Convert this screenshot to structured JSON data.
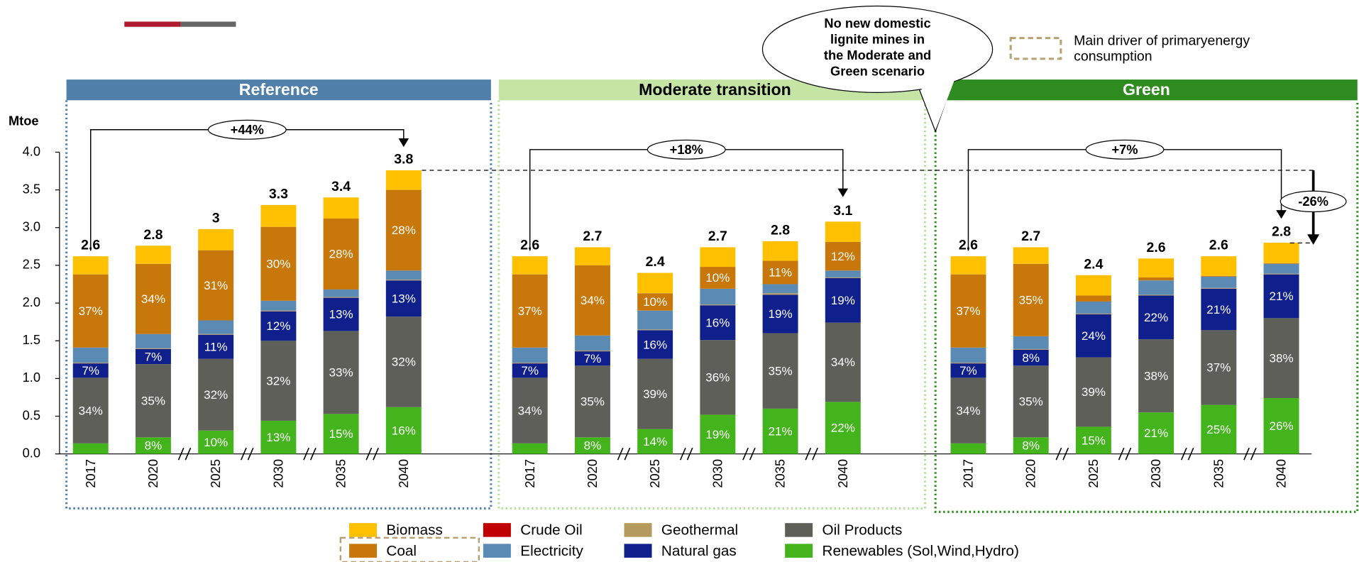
{
  "chart_data": {
    "type": "stacked_bar",
    "y_label": "Mtoe",
    "ylim": [
      0,
      4
    ],
    "yticks": [
      {
        "value": 0,
        "label": "0.0"
      },
      {
        "value": 0.5,
        "label": "0.5"
      },
      {
        "value": 1,
        "label": "1.0"
      },
      {
        "value": 1.5,
        "label": "1.5"
      },
      {
        "value": 2,
        "label": "2.0"
      },
      {
        "value": 2.5,
        "label": "2.5"
      },
      {
        "value": 3,
        "label": "3.0"
      },
      {
        "value": 3.5,
        "label": "3.5"
      },
      {
        "value": 4,
        "label": "4.0"
      }
    ],
    "categories": [
      "2017",
      "2020",
      "2025",
      "2030",
      "2035",
      "2040"
    ],
    "panels": [
      "Reference",
      "Moderate transition",
      "Green"
    ],
    "totals": [
      [
        2.6,
        2.8,
        3.0,
        3.3,
        3.4,
        3.8
      ],
      [
        2.6,
        2.7,
        2.4,
        2.7,
        2.8,
        3.1
      ],
      [
        2.6,
        2.7,
        2.4,
        2.6,
        2.6,
        2.8
      ]
    ],
    "series": [
      {
        "name": "Renewables (Sol,Wind,Hydro)",
        "color": "#44b41c",
        "values": [
          [
            0.14,
            0.22,
            0.31,
            0.44,
            0.53,
            0.62
          ],
          [
            0.14,
            0.22,
            0.33,
            0.52,
            0.6,
            0.69
          ],
          [
            0.14,
            0.22,
            0.36,
            0.55,
            0.65,
            0.74
          ]
        ],
        "shares": [
          [
            null,
            8,
            10,
            13,
            15,
            16
          ],
          [
            null,
            8,
            14,
            19,
            21,
            22
          ],
          [
            null,
            8,
            15,
            21,
            25,
            26
          ]
        ],
        "share_labels": [
          [
            null,
            "8%",
            "10%",
            "13%",
            "15%",
            "16%"
          ],
          [
            null,
            "8%",
            "14%",
            "19%",
            "21%",
            "22%"
          ],
          [
            null,
            "8%",
            "15%",
            "21%",
            "25%",
            "26%"
          ]
        ]
      },
      {
        "name": "Oil Products",
        "color": "#5f5f5a",
        "values": [
          [
            0.87,
            0.97,
            0.95,
            1.06,
            1.1,
            1.2
          ],
          [
            0.87,
            0.95,
            0.93,
            0.99,
            1.0,
            1.05
          ],
          [
            0.87,
            0.95,
            0.92,
            0.97,
            0.99,
            1.06
          ]
        ],
        "shares": [
          [
            34,
            35,
            32,
            32,
            33,
            32
          ],
          [
            34,
            35,
            39,
            36,
            35,
            34
          ],
          [
            34,
            35,
            39,
            38,
            37,
            38
          ]
        ],
        "share_labels": [
          [
            "34%",
            "35%",
            "32%",
            "32%",
            "33%",
            "32%"
          ],
          [
            "34%",
            "35%",
            "39%",
            "36%",
            "35%",
            "34%"
          ],
          [
            "34%",
            "35%",
            "39%",
            "38%",
            "37%",
            "38%"
          ]
        ]
      },
      {
        "name": "Natural gas",
        "color": "#0f1f8c",
        "values": [
          [
            0.19,
            0.2,
            0.32,
            0.39,
            0.44,
            0.48
          ],
          [
            0.19,
            0.19,
            0.38,
            0.46,
            0.51,
            0.59
          ],
          [
            0.19,
            0.21,
            0.57,
            0.58,
            0.55,
            0.58
          ]
        ],
        "shares": [
          [
            7,
            7,
            11,
            12,
            13,
            13
          ],
          [
            7,
            7,
            16,
            16,
            19,
            19
          ],
          [
            7,
            8,
            24,
            22,
            21,
            21
          ]
        ],
        "share_labels": [
          [
            "7%",
            "7%",
            "11%",
            "12%",
            "13%",
            "13%"
          ],
          [
            "7%",
            "7%",
            "16%",
            "16%",
            "19%",
            "19%"
          ],
          [
            "7%",
            "8%",
            "24%",
            "22%",
            "21%",
            "21%"
          ]
        ]
      },
      {
        "name": "Geothermal",
        "color": "#b59a5e",
        "values": [
          [
            0.01,
            0.01,
            0.01,
            0.01,
            0.01,
            0.01
          ],
          [
            0.01,
            0.01,
            0.01,
            0.01,
            0.02,
            0.01
          ],
          [
            0.01,
            0.01,
            0.01,
            0.01,
            0.01,
            0.01
          ]
        ]
      },
      {
        "name": "Electricity",
        "color": "#5b8ab5",
        "values": [
          [
            0.2,
            0.19,
            0.18,
            0.13,
            0.1,
            0.12
          ],
          [
            0.2,
            0.2,
            0.25,
            0.21,
            0.12,
            0.09
          ],
          [
            0.2,
            0.17,
            0.16,
            0.19,
            0.15,
            0.13
          ]
        ]
      },
      {
        "name": "Coal",
        "color": "#c8780a",
        "values": [
          [
            0.97,
            0.93,
            0.93,
            0.98,
            0.94,
            1.07
          ],
          [
            0.97,
            0.93,
            0.23,
            0.29,
            0.31,
            0.38
          ],
          [
            0.97,
            0.96,
            0.08,
            0.04,
            0.01,
            0.01
          ]
        ],
        "shares": [
          [
            37,
            34,
            31,
            30,
            28,
            28
          ],
          [
            37,
            34,
            10,
            10,
            11,
            12
          ],
          [
            37,
            35,
            null,
            null,
            null,
            null
          ]
        ],
        "share_labels": [
          [
            "37%",
            "34%",
            "31%",
            "30%",
            "28%",
            "28%"
          ],
          [
            "37%",
            "34%",
            "10%",
            "10%",
            "11%",
            "12%"
          ],
          [
            "37%",
            "35%",
            null,
            null,
            null,
            null
          ]
        ]
      },
      {
        "name": "Crude Oil",
        "color": "#c00000",
        "values": [
          [
            0,
            0,
            0,
            0,
            0,
            0
          ],
          [
            0,
            0,
            0,
            0,
            0,
            0
          ],
          [
            0,
            0,
            0,
            0,
            0,
            0
          ]
        ]
      },
      {
        "name": "Biomass",
        "color": "#ffc000",
        "values": [
          [
            0.24,
            0.24,
            0.28,
            0.29,
            0.28,
            0.26
          ],
          [
            0.24,
            0.24,
            0.27,
            0.26,
            0.26,
            0.27
          ],
          [
            0.24,
            0.22,
            0.27,
            0.25,
            0.26,
            0.27
          ]
        ]
      }
    ],
    "changes": [
      "+44%",
      "+18%",
      "+7%"
    ],
    "gap_label": "-26%",
    "callout": [
      "No new domestic",
      "lignite mines in",
      "the Moderate and",
      "Green scenario"
    ],
    "driver_legend": [
      "Main driver of primaryenergy",
      "consumption"
    ],
    "legend_order": [
      7,
      6,
      3,
      1,
      5,
      4,
      2,
      0
    ],
    "highlight_series": 5
  }
}
